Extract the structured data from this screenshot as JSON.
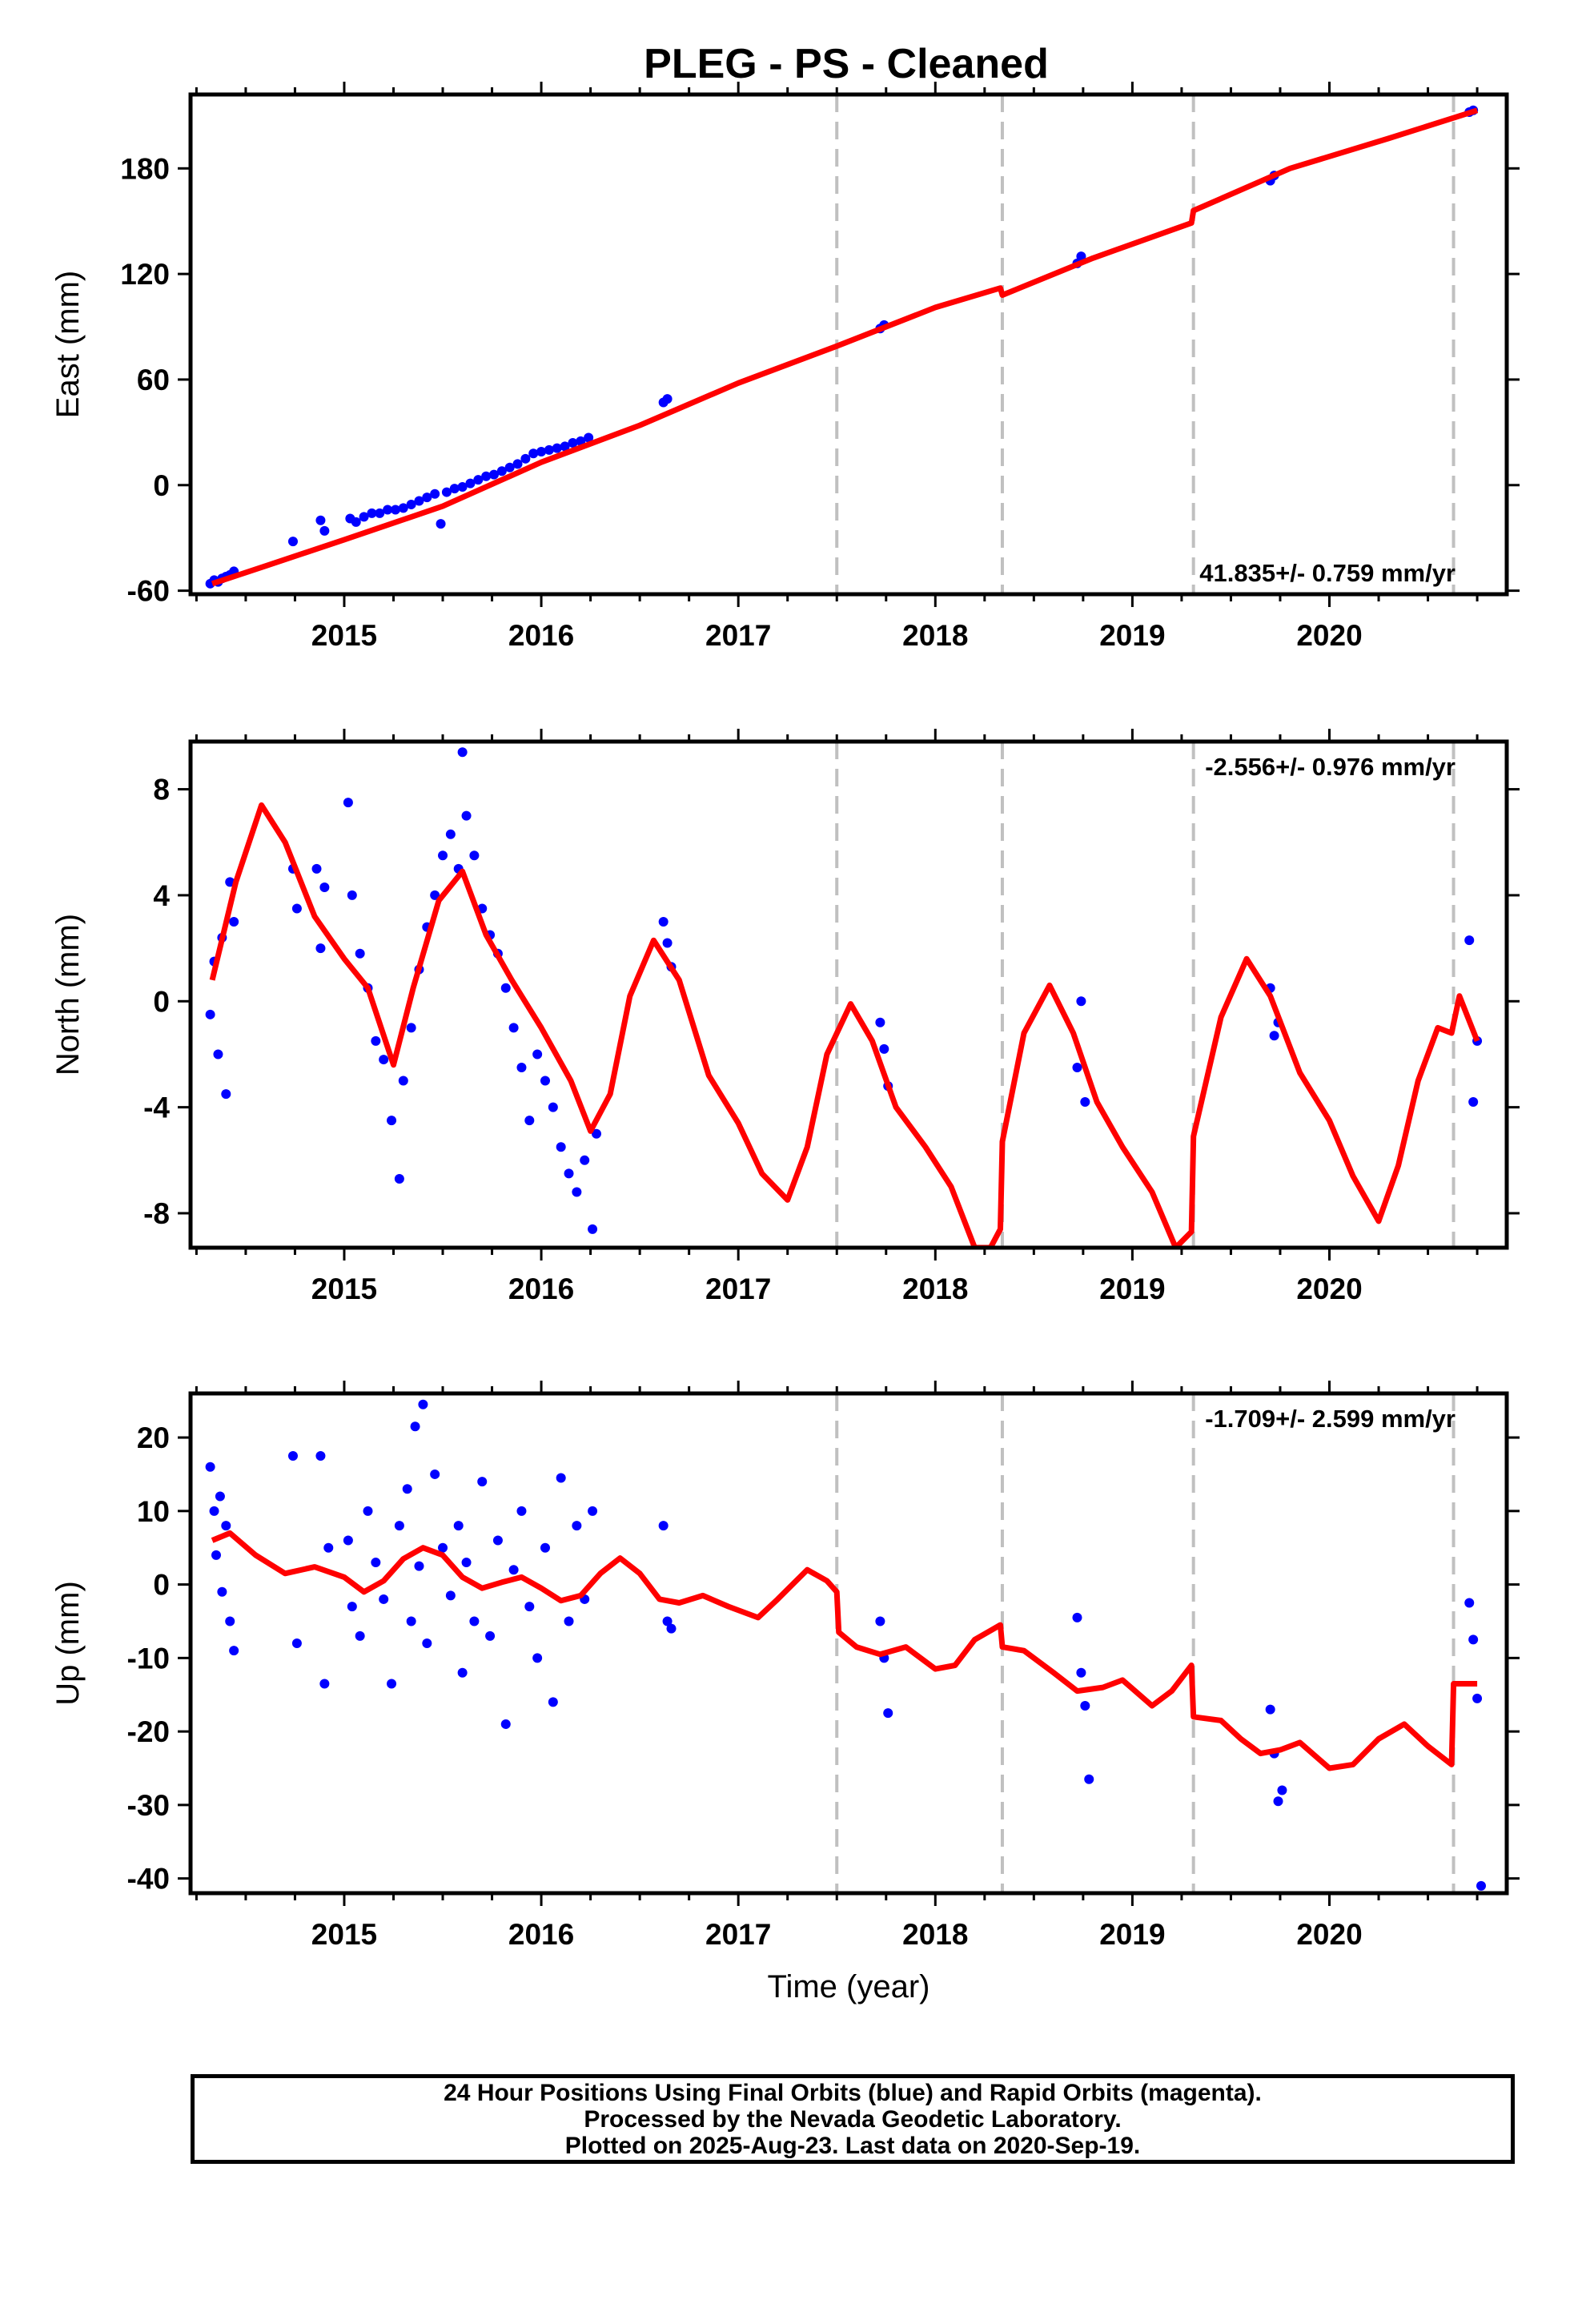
{
  "title": "PLEG  - PS - Cleaned",
  "footer": {
    "line1": "24 Hour Positions Using Final Orbits (blue) and Rapid Orbits (magenta).",
    "line2": "Processed by the Nevada Geodetic Laboratory.",
    "line3": "Plotted on 2025-Aug-23. Last data on 2020-Sep-19."
  },
  "colors": {
    "observations": "#0000ff",
    "model": "#ff0000",
    "steps": "#c0c0c0",
    "frame": "#000000"
  },
  "chart_data": [
    {
      "type": "scatter",
      "ylabel": "East (mm)",
      "xlabel": "",
      "xlim": [
        2014.22,
        2020.9
      ],
      "ylim": [
        -62,
        222
      ],
      "xticks": [
        2015,
        2016,
        2017,
        2018,
        2019,
        2020
      ],
      "yticks": [
        -60,
        0,
        60,
        120,
        180
      ],
      "rate_text": "41.835+/- 0.759 mm/yr",
      "rate_position": "bottom-right",
      "step_lines": [
        2017.5,
        2018.34,
        2019.31,
        2020.63
      ],
      "model_curve": [
        [
          2014.33,
          -56
        ],
        [
          2014.6,
          -46
        ],
        [
          2015.0,
          -31
        ],
        [
          2015.5,
          -12
        ],
        [
          2016.0,
          13
        ],
        [
          2016.5,
          34
        ],
        [
          2017.0,
          58
        ],
        [
          2017.5,
          79
        ],
        [
          2018.0,
          101
        ],
        [
          2018.33,
          112
        ],
        [
          2018.34,
          108
        ],
        [
          2018.8,
          129
        ],
        [
          2019.3,
          149
        ],
        [
          2019.31,
          156
        ],
        [
          2019.8,
          180
        ],
        [
          2020.3,
          197
        ],
        [
          2020.75,
          213
        ]
      ],
      "observations": [
        [
          2014.32,
          -56
        ],
        [
          2014.34,
          -54
        ],
        [
          2014.36,
          -55
        ],
        [
          2014.38,
          -53
        ],
        [
          2014.4,
          -52
        ],
        [
          2014.42,
          -51
        ],
        [
          2014.44,
          -49
        ],
        [
          2014.74,
          -32
        ],
        [
          2014.88,
          -20
        ],
        [
          2014.9,
          -26
        ],
        [
          2015.03,
          -19
        ],
        [
          2015.06,
          -21
        ],
        [
          2015.1,
          -18
        ],
        [
          2015.14,
          -16
        ],
        [
          2015.18,
          -16
        ],
        [
          2015.22,
          -14
        ],
        [
          2015.26,
          -14
        ],
        [
          2015.3,
          -13
        ],
        [
          2015.34,
          -11
        ],
        [
          2015.38,
          -9
        ],
        [
          2015.42,
          -7
        ],
        [
          2015.46,
          -5
        ],
        [
          2015.49,
          -22
        ],
        [
          2015.52,
          -4
        ],
        [
          2015.56,
          -2
        ],
        [
          2015.6,
          -1
        ],
        [
          2015.64,
          1
        ],
        [
          2015.68,
          3
        ],
        [
          2015.72,
          5
        ],
        [
          2015.76,
          6
        ],
        [
          2015.8,
          8
        ],
        [
          2015.84,
          10
        ],
        [
          2015.88,
          12
        ],
        [
          2015.92,
          15
        ],
        [
          2015.96,
          18
        ],
        [
          2016.0,
          19
        ],
        [
          2016.04,
          20
        ],
        [
          2016.08,
          21
        ],
        [
          2016.12,
          22
        ],
        [
          2016.16,
          24
        ],
        [
          2016.2,
          25
        ],
        [
          2016.24,
          27
        ],
        [
          2016.62,
          47
        ],
        [
          2016.64,
          49
        ],
        [
          2017.72,
          89
        ],
        [
          2017.74,
          91
        ],
        [
          2018.72,
          126
        ],
        [
          2018.74,
          130
        ],
        [
          2019.7,
          173
        ],
        [
          2019.72,
          176
        ],
        [
          2020.71,
          212
        ],
        [
          2020.73,
          213
        ]
      ]
    },
    {
      "type": "scatter",
      "ylabel": "North (mm)",
      "xlabel": "",
      "xlim": [
        2014.22,
        2020.9
      ],
      "ylim": [
        -9.3,
        9.8
      ],
      "xticks": [
        2015,
        2016,
        2017,
        2018,
        2019,
        2020
      ],
      "yticks": [
        -8,
        -4,
        0,
        4,
        8
      ],
      "rate_text": "-2.556+/- 0.976 mm/yr",
      "rate_position": "top-right",
      "step_lines": [
        2017.5,
        2018.34,
        2019.31,
        2020.63
      ],
      "model_curve": [
        [
          2014.33,
          0.8
        ],
        [
          2014.45,
          4.5
        ],
        [
          2014.58,
          7.4
        ],
        [
          2014.7,
          6.0
        ],
        [
          2014.85,
          3.2
        ],
        [
          2015.0,
          1.6
        ],
        [
          2015.12,
          0.5
        ],
        [
          2015.25,
          -2.4
        ],
        [
          2015.35,
          0.5
        ],
        [
          2015.48,
          3.8
        ],
        [
          2015.6,
          4.9
        ],
        [
          2015.72,
          2.5
        ],
        [
          2015.85,
          0.8
        ],
        [
          2016.0,
          -1.0
        ],
        [
          2016.15,
          -3.0
        ],
        [
          2016.25,
          -4.9
        ],
        [
          2016.35,
          -3.5
        ],
        [
          2016.45,
          0.2
        ],
        [
          2016.57,
          2.3
        ],
        [
          2016.7,
          0.8
        ],
        [
          2016.85,
          -2.8
        ],
        [
          2017.0,
          -4.6
        ],
        [
          2017.12,
          -6.5
        ],
        [
          2017.25,
          -7.5
        ],
        [
          2017.35,
          -5.5
        ],
        [
          2017.45,
          -2.0
        ],
        [
          2017.57,
          -0.1
        ],
        [
          2017.68,
          -1.5
        ],
        [
          2017.8,
          -4.0
        ],
        [
          2017.95,
          -5.5
        ],
        [
          2018.08,
          -7.0
        ],
        [
          2018.2,
          -9.3
        ],
        [
          2018.28,
          -9.3
        ],
        [
          2018.33,
          -8.6
        ],
        [
          2018.34,
          -5.3
        ],
        [
          2018.45,
          -1.2
        ],
        [
          2018.58,
          0.6
        ],
        [
          2018.7,
          -1.2
        ],
        [
          2018.82,
          -3.8
        ],
        [
          2018.95,
          -5.5
        ],
        [
          2019.1,
          -7.2
        ],
        [
          2019.22,
          -9.3
        ],
        [
          2019.3,
          -8.7
        ],
        [
          2019.31,
          -5.1
        ],
        [
          2019.45,
          -0.6
        ],
        [
          2019.58,
          1.6
        ],
        [
          2019.7,
          0.2
        ],
        [
          2019.85,
          -2.7
        ],
        [
          2020.0,
          -4.5
        ],
        [
          2020.12,
          -6.6
        ],
        [
          2020.25,
          -8.3
        ],
        [
          2020.35,
          -6.2
        ],
        [
          2020.45,
          -3.0
        ],
        [
          2020.55,
          -1.0
        ],
        [
          2020.62,
          -1.2
        ],
        [
          2020.66,
          0.2
        ],
        [
          2020.75,
          -1.5
        ]
      ],
      "observations": [
        [
          2014.32,
          -0.5
        ],
        [
          2014.34,
          1.5
        ],
        [
          2014.36,
          -2.0
        ],
        [
          2014.38,
          2.4
        ],
        [
          2014.4,
          -3.5
        ],
        [
          2014.42,
          4.5
        ],
        [
          2014.44,
          3.0
        ],
        [
          2014.74,
          5.0
        ],
        [
          2014.76,
          3.5
        ],
        [
          2014.86,
          5.0
        ],
        [
          2014.88,
          2.0
        ],
        [
          2014.9,
          4.3
        ],
        [
          2015.02,
          7.5
        ],
        [
          2015.04,
          4.0
        ],
        [
          2015.08,
          1.8
        ],
        [
          2015.12,
          0.5
        ],
        [
          2015.16,
          -1.5
        ],
        [
          2015.2,
          -2.2
        ],
        [
          2015.24,
          -4.5
        ],
        [
          2015.28,
          -6.7
        ],
        [
          2015.3,
          -3.0
        ],
        [
          2015.34,
          -1.0
        ],
        [
          2015.38,
          1.2
        ],
        [
          2015.42,
          2.8
        ],
        [
          2015.46,
          4.0
        ],
        [
          2015.5,
          5.5
        ],
        [
          2015.54,
          6.3
        ],
        [
          2015.58,
          5.0
        ],
        [
          2015.6,
          9.4
        ],
        [
          2015.62,
          7.0
        ],
        [
          2015.66,
          5.5
        ],
        [
          2015.7,
          3.5
        ],
        [
          2015.74,
          2.5
        ],
        [
          2015.78,
          1.8
        ],
        [
          2015.82,
          0.5
        ],
        [
          2015.86,
          -1.0
        ],
        [
          2015.9,
          -2.5
        ],
        [
          2015.94,
          -4.5
        ],
        [
          2015.98,
          -2.0
        ],
        [
          2016.02,
          -3.0
        ],
        [
          2016.06,
          -4.0
        ],
        [
          2016.1,
          -5.5
        ],
        [
          2016.14,
          -6.5
        ],
        [
          2016.18,
          -7.2
        ],
        [
          2016.22,
          -6.0
        ],
        [
          2016.26,
          -8.6
        ],
        [
          2016.28,
          -5.0
        ],
        [
          2016.62,
          3.0
        ],
        [
          2016.64,
          2.2
        ],
        [
          2016.66,
          1.3
        ],
        [
          2017.72,
          -0.8
        ],
        [
          2017.74,
          -1.8
        ],
        [
          2017.76,
          -3.2
        ],
        [
          2018.72,
          -2.5
        ],
        [
          2018.74,
          0.0
        ],
        [
          2018.76,
          -3.8
        ],
        [
          2019.7,
          0.5
        ],
        [
          2019.72,
          -1.3
        ],
        [
          2019.74,
          -0.8
        ],
        [
          2020.71,
          2.3
        ],
        [
          2020.73,
          -3.8
        ],
        [
          2020.75,
          -1.5
        ]
      ]
    },
    {
      "type": "scatter",
      "ylabel": "Up (mm)",
      "xlabel": "Time (year)",
      "xlim": [
        2014.22,
        2020.9
      ],
      "ylim": [
        -42,
        26
      ],
      "xticks": [
        2015,
        2016,
        2017,
        2018,
        2019,
        2020
      ],
      "yticks": [
        -40,
        -30,
        -20,
        -10,
        0,
        10,
        20
      ],
      "rate_text": "-1.709+/- 2.599 mm/yr",
      "rate_position": "top-right",
      "step_lines": [
        2017.5,
        2018.34,
        2019.31,
        2020.63
      ],
      "model_curve": [
        [
          2014.33,
          6.0
        ],
        [
          2014.42,
          7.0
        ],
        [
          2014.55,
          4.0
        ],
        [
          2014.7,
          1.5
        ],
        [
          2014.85,
          2.4
        ],
        [
          2015.0,
          1.0
        ],
        [
          2015.1,
          -1.0
        ],
        [
          2015.2,
          0.5
        ],
        [
          2015.3,
          3.5
        ],
        [
          2015.4,
          5.0
        ],
        [
          2015.5,
          4.0
        ],
        [
          2015.6,
          1.0
        ],
        [
          2015.7,
          -0.5
        ],
        [
          2015.8,
          0.3
        ],
        [
          2015.9,
          1.0
        ],
        [
          2016.0,
          -0.5
        ],
        [
          2016.1,
          -2.2
        ],
        [
          2016.2,
          -1.5
        ],
        [
          2016.3,
          1.5
        ],
        [
          2016.4,
          3.6
        ],
        [
          2016.5,
          1.5
        ],
        [
          2016.6,
          -2.0
        ],
        [
          2016.7,
          -2.5
        ],
        [
          2016.82,
          -1.5
        ],
        [
          2016.95,
          -3.0
        ],
        [
          2017.1,
          -4.5
        ],
        [
          2017.2,
          -2.0
        ],
        [
          2017.35,
          2.0
        ],
        [
          2017.45,
          0.5
        ],
        [
          2017.5,
          -1.0
        ],
        [
          2017.51,
          -6.5
        ],
        [
          2017.6,
          -8.5
        ],
        [
          2017.72,
          -9.5
        ],
        [
          2017.85,
          -8.5
        ],
        [
          2018.0,
          -11.5
        ],
        [
          2018.1,
          -11.0
        ],
        [
          2018.2,
          -7.5
        ],
        [
          2018.33,
          -5.5
        ],
        [
          2018.34,
          -8.5
        ],
        [
          2018.45,
          -9.0
        ],
        [
          2018.6,
          -12.0
        ],
        [
          2018.72,
          -14.5
        ],
        [
          2018.85,
          -14.0
        ],
        [
          2018.95,
          -13.0
        ],
        [
          2019.1,
          -16.5
        ],
        [
          2019.2,
          -14.5
        ],
        [
          2019.3,
          -11.0
        ],
        [
          2019.31,
          -18.0
        ],
        [
          2019.45,
          -18.5
        ],
        [
          2019.55,
          -21.0
        ],
        [
          2019.65,
          -23.0
        ],
        [
          2019.75,
          -22.5
        ],
        [
          2019.85,
          -21.5
        ],
        [
          2020.0,
          -25.0
        ],
        [
          2020.12,
          -24.5
        ],
        [
          2020.25,
          -21.0
        ],
        [
          2020.38,
          -19.0
        ],
        [
          2020.5,
          -22.0
        ],
        [
          2020.62,
          -24.5
        ],
        [
          2020.63,
          -13.5
        ],
        [
          2020.75,
          -13.5
        ]
      ],
      "observations": [
        [
          2014.32,
          16.0
        ],
        [
          2014.34,
          10.0
        ],
        [
          2014.35,
          4.0
        ],
        [
          2014.37,
          12.0
        ],
        [
          2014.38,
          -1.0
        ],
        [
          2014.4,
          8.0
        ],
        [
          2014.42,
          -5.0
        ],
        [
          2014.44,
          -9.0
        ],
        [
          2014.74,
          17.5
        ],
        [
          2014.76,
          -8.0
        ],
        [
          2014.88,
          17.5
        ],
        [
          2014.9,
          -13.5
        ],
        [
          2014.92,
          5.0
        ],
        [
          2015.02,
          6.0
        ],
        [
          2015.04,
          -3.0
        ],
        [
          2015.08,
          -7.0
        ],
        [
          2015.12,
          10.0
        ],
        [
          2015.16,
          3.0
        ],
        [
          2015.2,
          -2.0
        ],
        [
          2015.24,
          -13.5
        ],
        [
          2015.28,
          8.0
        ],
        [
          2015.32,
          13.0
        ],
        [
          2015.34,
          -5.0
        ],
        [
          2015.36,
          21.5
        ],
        [
          2015.38,
          2.5
        ],
        [
          2015.4,
          24.5
        ],
        [
          2015.42,
          -8.0
        ],
        [
          2015.46,
          15.0
        ],
        [
          2015.5,
          5.0
        ],
        [
          2015.54,
          -1.5
        ],
        [
          2015.58,
          8.0
        ],
        [
          2015.6,
          -12.0
        ],
        [
          2015.62,
          3.0
        ],
        [
          2015.66,
          -5.0
        ],
        [
          2015.7,
          14.0
        ],
        [
          2015.74,
          -7.0
        ],
        [
          2015.78,
          6.0
        ],
        [
          2015.82,
          -19.0
        ],
        [
          2015.86,
          2.0
        ],
        [
          2015.9,
          10.0
        ],
        [
          2015.94,
          -3.0
        ],
        [
          2015.98,
          -10.0
        ],
        [
          2016.02,
          5.0
        ],
        [
          2016.06,
          -16.0
        ],
        [
          2016.1,
          14.5
        ],
        [
          2016.14,
          -5.0
        ],
        [
          2016.18,
          8.0
        ],
        [
          2016.22,
          -2.0
        ],
        [
          2016.26,
          10.0
        ],
        [
          2016.62,
          8.0
        ],
        [
          2016.64,
          -5.0
        ],
        [
          2016.66,
          -6.0
        ],
        [
          2017.72,
          -5.0
        ],
        [
          2017.74,
          -10.0
        ],
        [
          2017.76,
          -17.5
        ],
        [
          2018.72,
          -4.5
        ],
        [
          2018.74,
          -12.0
        ],
        [
          2018.76,
          -16.5
        ],
        [
          2018.78,
          -26.5
        ],
        [
          2019.7,
          -17.0
        ],
        [
          2019.72,
          -23.0
        ],
        [
          2019.74,
          -29.5
        ],
        [
          2019.76,
          -28.0
        ],
        [
          2020.71,
          -2.5
        ],
        [
          2020.73,
          -7.5
        ],
        [
          2020.75,
          -15.5
        ],
        [
          2020.77,
          -41.0
        ]
      ]
    }
  ]
}
